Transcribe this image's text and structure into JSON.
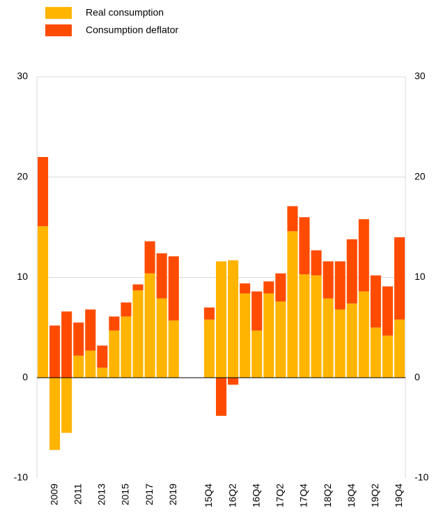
{
  "chart_data": {
    "type": "bar",
    "stacked": true,
    "categories": [
      null,
      "2009",
      null,
      "2011",
      null,
      "2013",
      null,
      "2015",
      null,
      "2017",
      null,
      "2019",
      null,
      null,
      "15Q4",
      null,
      "16Q2",
      null,
      "16Q4",
      null,
      "17Q2",
      null,
      "17Q4",
      null,
      "18Q2",
      null,
      "18Q4",
      null,
      "19Q2",
      null,
      "19Q4"
    ],
    "series": [
      {
        "name": "Real consumption",
        "color": "#ffb400",
        "values": [
          15.1,
          -7.2,
          -5.5,
          2.2,
          2.7,
          1.0,
          4.7,
          6.1,
          8.7,
          10.4,
          7.9,
          5.7,
          null,
          null,
          5.8,
          11.6,
          11.7,
          8.4,
          4.7,
          8.4,
          7.6,
          14.6,
          10.3,
          10.2,
          7.9,
          6.8,
          7.4,
          8.6,
          5.0,
          4.2,
          5.8
        ]
      },
      {
        "name": "Consumption deflator",
        "color": "#ff4b00",
        "values": [
          6.9,
          5.2,
          6.6,
          3.3,
          4.1,
          2.2,
          1.4,
          1.4,
          0.6,
          3.2,
          4.5,
          6.4,
          null,
          null,
          1.2,
          -3.8,
          -0.7,
          1.0,
          3.9,
          1.2,
          2.8,
          2.5,
          5.7,
          2.5,
          3.7,
          4.8,
          6.4,
          7.2,
          5.2,
          4.9,
          8.2
        ]
      }
    ],
    "ylim": [
      -10,
      30
    ],
    "yticks": [
      -10,
      0,
      10,
      20,
      30
    ],
    "grid": true,
    "legend": "top-left"
  }
}
